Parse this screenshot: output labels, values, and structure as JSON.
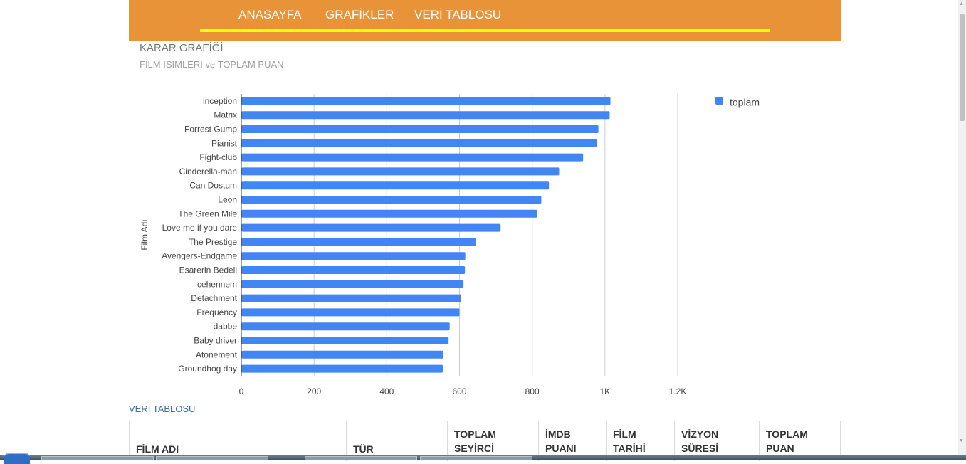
{
  "nav": {
    "items": [
      "ANASAYFA",
      "GRAFİKLER",
      "VERİ TABLOSU"
    ],
    "bar_color": "#e99338",
    "underline_color": "#ffff00"
  },
  "chart_data": {
    "type": "bar",
    "orientation": "horizontal",
    "title": "KARAR GRAFİĞİ",
    "subtitle": "FİLM İSİMLERİ ve TOPLAM PUAN",
    "ylabel": "Film Adı",
    "xlabel": "",
    "categories": [
      "inception",
      "Matrix",
      "Forrest Gump",
      "Pianist",
      "Fight-club",
      "Cinderella-man",
      "Can Dostum",
      "Leon",
      "The Green Mile",
      "Love me if you dare",
      "The Prestige",
      "Avengers-Endgame",
      "Esarerin Bedeli",
      "cehennem",
      "Detachment",
      "Frequency",
      "dabbe",
      "Baby driver",
      "Atonement",
      "Groundhog day"
    ],
    "series": [
      {
        "name": "toplam",
        "color": "#4285f4",
        "values": [
          1015,
          1013,
          982,
          978,
          940,
          874,
          846,
          825,
          814,
          713,
          645,
          616,
          615,
          611,
          604,
          600,
          573,
          570,
          556,
          554
        ]
      }
    ],
    "xlim": [
      0,
      1200
    ],
    "xticks": [
      0,
      200,
      400,
      600,
      800,
      1000,
      1200
    ],
    "xtick_labels": [
      "0",
      "200",
      "400",
      "600",
      "800",
      "1K",
      "1.2K"
    ],
    "grid": true,
    "legend": "right"
  },
  "table": {
    "link_label": "VERİ TABLOSU",
    "headers": [
      [
        "FİLM ADI"
      ],
      [
        "TÜR"
      ],
      [
        "TOPLAM",
        "SEYİRCİ"
      ],
      [
        "İMDB",
        "PUANI"
      ],
      [
        "FİLM",
        "TARİHİ"
      ],
      [
        "VİZYON",
        "SÜRESİ"
      ],
      [
        "TOPLAM",
        "PUAN"
      ]
    ]
  }
}
